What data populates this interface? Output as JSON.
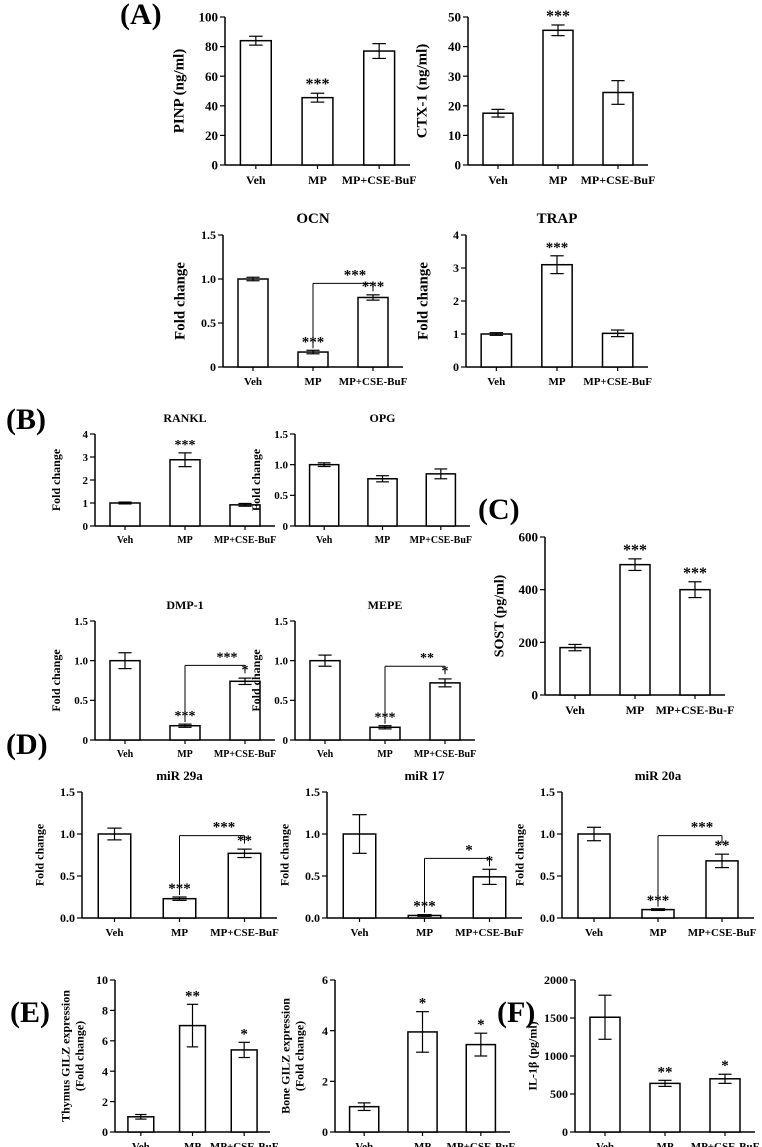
{
  "panel_labels": [
    "(A)",
    "(B)",
    "(C)",
    "(D)",
    "(E)",
    "(F)"
  ],
  "chart_data": [
    {
      "type": "bar",
      "title": "",
      "ylabel": "PINP (ng/ml)",
      "ylim": [
        0,
        100
      ],
      "yticks": [
        0,
        20,
        40,
        60,
        80,
        100
      ],
      "categories": [
        "Veh",
        "MP",
        "MP+CSE-BuF"
      ],
      "values": [
        84,
        45.5,
        77
      ],
      "errors": [
        3,
        3,
        5
      ],
      "sig": [
        "",
        "***",
        ""
      ],
      "brackets": []
    },
    {
      "type": "bar",
      "title": "",
      "ylabel": "CTX-1 (ng/ml)",
      "ylim": [
        0,
        50
      ],
      "yticks": [
        0,
        10,
        20,
        30,
        40,
        50
      ],
      "categories": [
        "Veh",
        "MP",
        "MP+CSE-BuF"
      ],
      "values": [
        17.5,
        45.5,
        24.5
      ],
      "errors": [
        1.3,
        1.8,
        4
      ],
      "sig": [
        "",
        "***",
        ""
      ],
      "brackets": []
    },
    {
      "type": "bar",
      "title": "OCN",
      "ylabel": "Fold change",
      "ylim": [
        0,
        1.5
      ],
      "yticks": [
        "0",
        "0.5",
        "1.0",
        "1.5"
      ],
      "categories": [
        "Veh",
        "MP",
        "MP+CSE-BuF"
      ],
      "values": [
        1.0,
        0.17,
        0.79
      ],
      "errors": [
        0.02,
        0.02,
        0.03
      ],
      "sig": [
        "",
        "***",
        "***"
      ],
      "brackets": [
        {
          "from": 1,
          "to": 2,
          "y": 0.95,
          "label": "***"
        }
      ]
    },
    {
      "type": "bar",
      "title": "TRAP",
      "ylabel": "Fold change",
      "ylim": [
        0,
        4
      ],
      "yticks": [
        0,
        1,
        2,
        3,
        4
      ],
      "categories": [
        "Veh",
        "MP",
        "MP+CSE-BuF"
      ],
      "values": [
        1.0,
        3.1,
        1.02
      ],
      "errors": [
        0.04,
        0.27,
        0.1
      ],
      "sig": [
        "",
        "***",
        ""
      ],
      "brackets": []
    },
    {
      "type": "bar",
      "title": "RANKL",
      "ylabel": "Fold change",
      "ylim": [
        0,
        4
      ],
      "yticks": [
        0,
        1,
        2,
        3,
        4
      ],
      "categories": [
        "Veh",
        "MP",
        "MP+CSE-BuF"
      ],
      "values": [
        1.0,
        2.88,
        0.92
      ],
      "errors": [
        0.04,
        0.3,
        0.06
      ],
      "sig": [
        "",
        "***",
        ""
      ],
      "brackets": []
    },
    {
      "type": "bar",
      "title": "OPG",
      "ylabel": "Fold change",
      "ylim": [
        0,
        1.5
      ],
      "yticks": [
        "0",
        "0.5",
        "1.0",
        "1.5"
      ],
      "categories": [
        "Veh",
        "MP",
        "MP+CSE-BuF"
      ],
      "values": [
        1.0,
        0.77,
        0.85
      ],
      "errors": [
        0.03,
        0.05,
        0.08
      ],
      "sig": [
        "",
        "",
        ""
      ],
      "brackets": []
    },
    {
      "type": "bar",
      "title": "",
      "ylabel": "SOST (pg/ml)",
      "ylim": [
        0,
        600
      ],
      "yticks": [
        0,
        200,
        400,
        600
      ],
      "categories": [
        "Veh",
        "MP",
        "MP+CSE-Bu-F"
      ],
      "values": [
        180,
        495,
        400
      ],
      "errors": [
        12,
        22,
        30
      ],
      "sig": [
        "",
        "***",
        "***"
      ],
      "brackets": []
    },
    {
      "type": "bar",
      "title": "DMP-1",
      "ylabel": "Fold change",
      "ylim": [
        0,
        1.5
      ],
      "yticks": [
        "0",
        "0.5",
        "1.0",
        "1.5"
      ],
      "categories": [
        "Veh",
        "MP",
        "MP+CSE-BuF"
      ],
      "values": [
        1.0,
        0.18,
        0.74
      ],
      "errors": [
        0.1,
        0.02,
        0.04
      ],
      "sig": [
        "",
        "***",
        "*"
      ],
      "brackets": [
        {
          "from": 1,
          "to": 2,
          "y": 0.94,
          "label": "***"
        }
      ]
    },
    {
      "type": "bar",
      "title": "MEPE",
      "ylabel": "Fold change",
      "ylim": [
        0,
        1.5
      ],
      "yticks": [
        "0",
        "0.5",
        "1.0",
        "1.5"
      ],
      "categories": [
        "Veh",
        "MP",
        "MP+CSE-BuF"
      ],
      "values": [
        1.0,
        0.16,
        0.72
      ],
      "errors": [
        0.07,
        0.02,
        0.05
      ],
      "sig": [
        "",
        "***",
        "*"
      ],
      "brackets": [
        {
          "from": 1,
          "to": 2,
          "y": 0.93,
          "label": "**"
        }
      ]
    },
    {
      "type": "bar",
      "title": "miR 29a",
      "ylabel": "Fold change",
      "ylim": [
        0,
        1.5
      ],
      "yticks": [
        "0.0",
        "0.5",
        "1.0",
        "1.5"
      ],
      "categories": [
        "Veh",
        "MP",
        "MP+CSE-BuF"
      ],
      "values": [
        1.0,
        0.23,
        0.77
      ],
      "errors": [
        0.07,
        0.02,
        0.05
      ],
      "sig": [
        "",
        "***",
        "**"
      ],
      "brackets": [
        {
          "from": 1,
          "to": 2,
          "y": 0.98,
          "label": "***"
        }
      ]
    },
    {
      "type": "bar",
      "title": "miR 17",
      "ylabel": "Fold change",
      "ylim": [
        0,
        1.5
      ],
      "yticks": [
        "0.0",
        "0.5",
        "1.0",
        "1.5"
      ],
      "categories": [
        "Veh",
        "MP",
        "MP+CSE-BuF"
      ],
      "values": [
        1.0,
        0.03,
        0.49
      ],
      "errors": [
        0.23,
        0.01,
        0.09
      ],
      "sig": [
        "",
        "***",
        "*"
      ],
      "brackets": [
        {
          "from": 1,
          "to": 2,
          "y": 0.71,
          "label": "*"
        }
      ]
    },
    {
      "type": "bar",
      "title": "miR 20a",
      "ylabel": "Fold change",
      "ylim": [
        0,
        1.5
      ],
      "yticks": [
        "0.0",
        "0.5",
        "1.0",
        "1.5"
      ],
      "categories": [
        "Veh",
        "MP",
        "MP+CSE-BuF"
      ],
      "values": [
        1.0,
        0.1,
        0.68
      ],
      "errors": [
        0.08,
        0.01,
        0.08
      ],
      "sig": [
        "",
        "***",
        "**"
      ],
      "brackets": [
        {
          "from": 1,
          "to": 2,
          "y": 0.98,
          "label": "***"
        }
      ]
    },
    {
      "type": "bar",
      "title": "",
      "ylabel": "Thymus GILZ expression",
      "ylabel2": "(Fold change)",
      "ylim": [
        0,
        10
      ],
      "yticks": [
        0,
        2,
        4,
        6,
        8,
        10
      ],
      "categories": [
        "Veh",
        "MP",
        "MP+CSE-BuF"
      ],
      "values": [
        1.0,
        7.0,
        5.4
      ],
      "errors": [
        0.15,
        1.4,
        0.5
      ],
      "sig": [
        "",
        "**",
        "*"
      ],
      "brackets": []
    },
    {
      "type": "bar",
      "title": "",
      "ylabel": "Bone GILZ expression",
      "ylabel2": "(Fold change)",
      "ylim": [
        0,
        6
      ],
      "yticks": [
        0,
        2,
        4,
        6
      ],
      "categories": [
        "Veh",
        "MP",
        "MP+CSE-BuF"
      ],
      "values": [
        1.0,
        3.95,
        3.45
      ],
      "errors": [
        0.15,
        0.8,
        0.45
      ],
      "sig": [
        "",
        "*",
        "*"
      ],
      "brackets": []
    },
    {
      "type": "bar",
      "title": "",
      "ylabel": "IL-1β (pg/ml)",
      "ylim": [
        0,
        2000
      ],
      "yticks": [
        0,
        500,
        1000,
        1500,
        2000
      ],
      "categories": [
        "Veh",
        "MP",
        "MP+CSE-BuF"
      ],
      "values": [
        1510,
        640,
        700
      ],
      "errors": [
        290,
        40,
        60
      ],
      "sig": [
        "",
        "**",
        "*"
      ],
      "brackets": []
    }
  ]
}
